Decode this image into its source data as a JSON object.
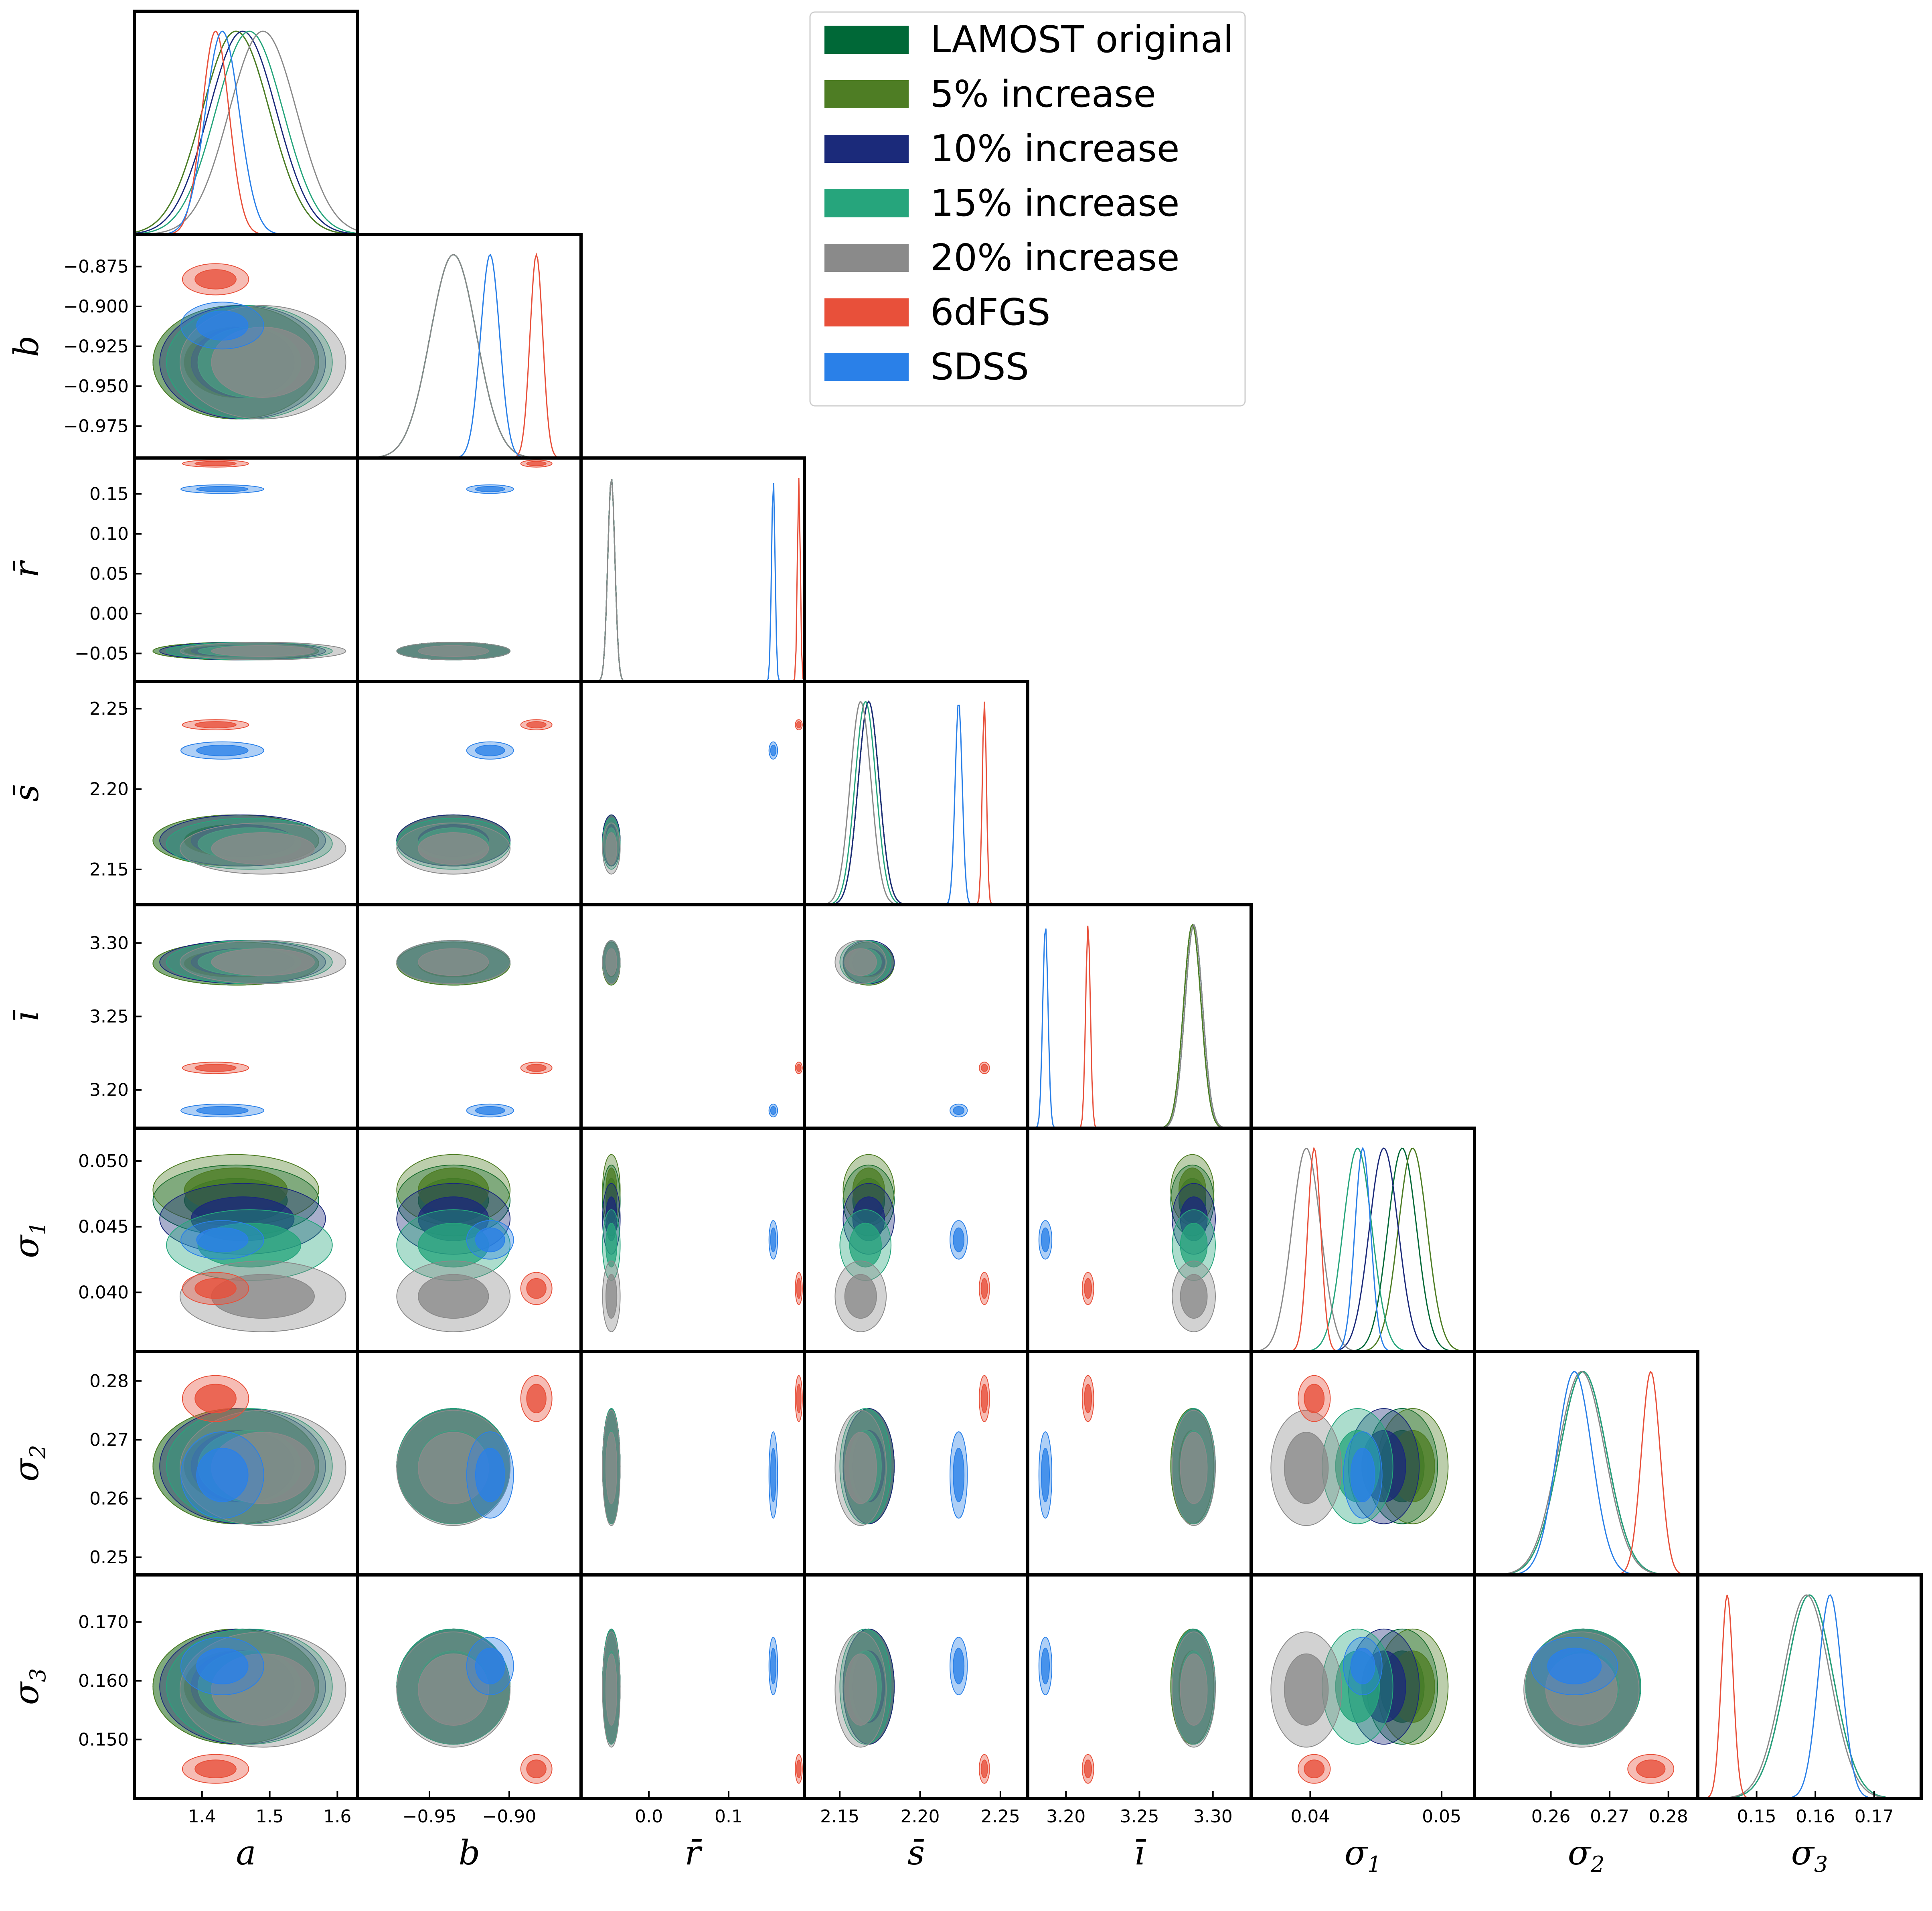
{
  "chart_data": {
    "type": "corner",
    "parameters": [
      {
        "symbol": "a",
        "sub": "",
        "range": [
          1.3,
          1.63
        ],
        "ticks": [
          1.4,
          1.5,
          1.6
        ],
        "tick_labels": [
          "1.4",
          "1.5",
          "1.6"
        ]
      },
      {
        "symbol": "b",
        "sub": "",
        "range": [
          -0.995,
          -0.855
        ],
        "ticks": [
          -0.975,
          -0.95,
          -0.925,
          -0.9,
          -0.875
        ],
        "tick_labels": [
          "−0.975",
          "−0.950",
          "−0.925",
          "−0.900",
          "−0.875"
        ],
        "x_ticks": [
          -0.95,
          -0.9
        ],
        "x_tick_labels": [
          "−0.95",
          "−0.90"
        ]
      },
      {
        "symbol": "r̄",
        "sub": "",
        "range": [
          -0.085,
          0.195
        ],
        "ticks": [
          -0.05,
          0.0,
          0.05,
          0.1,
          0.15
        ],
        "tick_labels": [
          "−0.05",
          "0.00",
          "0.05",
          "0.10",
          "0.15"
        ],
        "x_ticks": [
          0.0,
          0.1
        ],
        "x_tick_labels": [
          "0.0",
          "0.1"
        ]
      },
      {
        "symbol": "s̄",
        "sub": "",
        "range": [
          2.128,
          2.267
        ],
        "ticks": [
          2.15,
          2.2,
          2.25
        ],
        "tick_labels": [
          "2.15",
          "2.20",
          "2.25"
        ],
        "x_ticks": [
          2.15,
          2.2,
          2.25
        ],
        "x_tick_labels": [
          "2.15",
          "2.20",
          "2.25"
        ]
      },
      {
        "symbol": "ī",
        "sub": "",
        "range": [
          3.174,
          3.326
        ],
        "ticks": [
          3.2,
          3.25,
          3.3
        ],
        "tick_labels": [
          "3.20",
          "3.25",
          "3.30"
        ],
        "x_ticks": [
          3.2,
          3.25,
          3.3
        ],
        "x_tick_labels": [
          "3.20",
          "3.25",
          "3.30"
        ]
      },
      {
        "symbol": "σ",
        "sub": "1",
        "range": [
          0.0355,
          0.0525
        ],
        "ticks": [
          0.04,
          0.045,
          0.05
        ],
        "tick_labels": [
          "0.040",
          "0.045",
          "0.050"
        ],
        "x_ticks": [
          0.04,
          0.05
        ],
        "x_tick_labels": [
          "0.04",
          "0.05"
        ]
      },
      {
        "symbol": "σ",
        "sub": "2",
        "range": [
          0.247,
          0.285
        ],
        "ticks": [
          0.25,
          0.26,
          0.27,
          0.28
        ],
        "tick_labels": [
          "0.25",
          "0.26",
          "0.27",
          "0.28"
        ],
        "x_ticks": [
          0.26,
          0.27,
          0.28
        ],
        "x_tick_labels": [
          "0.26",
          "0.27",
          "0.28"
        ]
      },
      {
        "symbol": "σ",
        "sub": "3",
        "range": [
          0.14,
          0.178
        ],
        "ticks": [
          0.15,
          0.16,
          0.17
        ],
        "tick_labels": [
          "0.150",
          "0.160",
          "0.170"
        ],
        "x_ticks": [
          0.15,
          0.16,
          0.17
        ],
        "x_tick_labels": [
          "0.15",
          "0.16",
          "0.17"
        ]
      }
    ],
    "series": [
      {
        "name": "LAMOST original",
        "color": "#006837",
        "means": [
          1.45,
          -0.935,
          -0.047,
          2.168,
          3.286,
          0.047,
          0.2655,
          0.159
        ],
        "sds": [
          0.05,
          0.0145,
          0.0045,
          0.0065,
          0.006,
          0.0011,
          0.004,
          0.004
        ]
      },
      {
        "name": "5% increase",
        "color": "#4e7d24",
        "means": [
          1.45,
          -0.935,
          -0.047,
          2.168,
          3.286,
          0.0478,
          0.2655,
          0.159
        ],
        "sds": [
          0.05,
          0.0145,
          0.0045,
          0.0065,
          0.006,
          0.0011,
          0.004,
          0.004
        ]
      },
      {
        "name": "10% increase",
        "color": "#1b2a7a",
        "means": [
          1.46,
          -0.935,
          -0.047,
          2.168,
          3.287,
          0.0456,
          0.2655,
          0.159
        ],
        "sds": [
          0.05,
          0.0145,
          0.0045,
          0.0065,
          0.006,
          0.0011,
          0.004,
          0.004
        ]
      },
      {
        "name": "15% increase",
        "color": "#26a57c",
        "means": [
          1.47,
          -0.935,
          -0.047,
          2.166,
          3.287,
          0.0436,
          0.2655,
          0.159
        ],
        "sds": [
          0.05,
          0.0145,
          0.0045,
          0.0065,
          0.006,
          0.0011,
          0.004,
          0.004
        ]
      },
      {
        "name": "20% increase",
        "color": "#8a8a8a",
        "means": [
          1.49,
          -0.935,
          -0.047,
          2.163,
          3.287,
          0.0397,
          0.2652,
          0.1585
        ],
        "sds": [
          0.05,
          0.0145,
          0.0045,
          0.0065,
          0.006,
          0.0011,
          0.004,
          0.004
        ]
      },
      {
        "name": "6dFGS",
        "color": "#e8503a",
        "means": [
          1.42,
          -0.883,
          0.188,
          2.24,
          3.215,
          0.0403,
          0.277,
          0.145
        ],
        "sds": [
          0.02,
          0.004,
          0.0018,
          0.0013,
          0.0016,
          0.0005,
          0.0016,
          0.001
        ]
      },
      {
        "name": "SDSS",
        "color": "#2a80e8",
        "means": [
          1.43,
          -0.912,
          0.156,
          2.224,
          3.186,
          0.044,
          0.264,
          0.1625
        ],
        "sds": [
          0.025,
          0.006,
          0.0022,
          0.0022,
          0.0018,
          0.0006,
          0.003,
          0.002
        ]
      }
    ],
    "legend": {
      "placement": "top-right"
    }
  }
}
